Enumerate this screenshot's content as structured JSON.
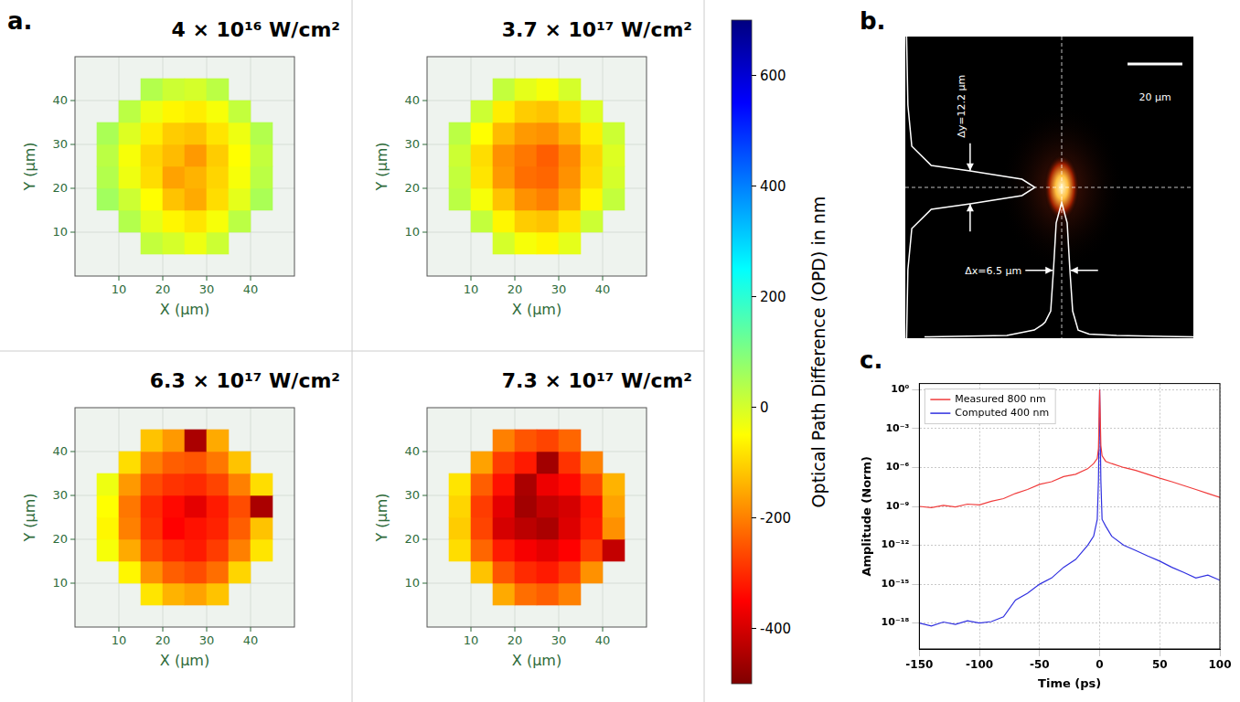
{
  "chart_data": [
    {
      "panel": "a.",
      "type": "heatmap",
      "x_label": "X (µm)",
      "y_label": "Y (µm)",
      "xlim": [
        0,
        50
      ],
      "ylim": [
        0,
        50
      ],
      "xticks": [
        10,
        20,
        30,
        40
      ],
      "yticks": [
        10,
        20,
        30,
        40
      ],
      "x": [
        7.5,
        12.5,
        17.5,
        22.5,
        27.5,
        32.5,
        37.5,
        42.5
      ],
      "y": [
        7.5,
        12.5,
        17.5,
        22.5,
        27.5,
        32.5,
        37.5,
        42.5
      ],
      "colorbar": {
        "label": "Optical Path Difference (OPD) in nm",
        "range": [
          -500,
          700
        ],
        "ticks": [
          -400,
          -200,
          0,
          200,
          400,
          600
        ]
      },
      "subplots": [
        {
          "title": "4 × 10¹⁶ W/cm²",
          "z": [
            [
              null,
              null,
              20,
              0,
              -30,
              10,
              null,
              null
            ],
            [
              null,
              40,
              -20,
              -60,
              -80,
              -40,
              30,
              null
            ],
            [
              60,
              10,
              -50,
              -120,
              -150,
              -90,
              -20,
              50
            ],
            [
              40,
              -30,
              -90,
              -160,
              -140,
              -100,
              -40,
              30
            ],
            [
              30,
              -40,
              -100,
              -130,
              -170,
              -110,
              -50,
              20
            ],
            [
              50,
              -10,
              -70,
              -110,
              -120,
              -80,
              -30,
              40
            ],
            [
              null,
              30,
              -30,
              -60,
              -70,
              -40,
              20,
              null
            ],
            [
              null,
              null,
              40,
              10,
              0,
              30,
              null,
              null
            ]
          ]
        },
        {
          "title": "3.7 × 10¹⁷ W/cm²",
          "z": [
            [
              null,
              null,
              0,
              -40,
              -60,
              -20,
              null,
              null
            ],
            [
              null,
              20,
              -60,
              -110,
              -120,
              -80,
              10,
              null
            ],
            [
              30,
              -40,
              -120,
              -180,
              -200,
              -150,
              -60,
              20
            ],
            [
              20,
              -80,
              -170,
              -220,
              -230,
              -180,
              -90,
              0
            ],
            [
              10,
              -90,
              -180,
              -210,
              -240,
              -190,
              -100,
              -10
            ],
            [
              30,
              -50,
              -130,
              -170,
              -180,
              -140,
              -70,
              10
            ],
            [
              null,
              10,
              -70,
              -110,
              -120,
              -90,
              -10,
              null
            ],
            [
              null,
              null,
              20,
              -20,
              -40,
              0,
              null,
              null
            ]
          ]
        },
        {
          "title": "6.3 × 10¹⁷ W/cm²",
          "z": [
            [
              null,
              null,
              -80,
              -140,
              -160,
              -120,
              null,
              null
            ],
            [
              null,
              -60,
              -180,
              -240,
              -260,
              -220,
              -100,
              null
            ],
            [
              -40,
              -150,
              -260,
              -300,
              -320,
              -280,
              -200,
              -80
            ],
            [
              -60,
              -200,
              -290,
              -350,
              -330,
              -310,
              -240,
              -120
            ],
            [
              -50,
              -210,
              -300,
              -340,
              -380,
              -320,
              -260,
              -450
            ],
            [
              -30,
              -170,
              -260,
              -290,
              -300,
              -270,
              -200,
              -90
            ],
            [
              null,
              -90,
              -200,
              -240,
              -250,
              -210,
              -120,
              null
            ],
            [
              null,
              null,
              -120,
              -170,
              -450,
              -150,
              null,
              null
            ]
          ]
        },
        {
          "title": "7.3 × 10¹⁷ W/cm²",
          "z": [
            [
              null,
              null,
              -150,
              -220,
              -240,
              -200,
              null,
              null
            ],
            [
              null,
              -120,
              -250,
              -300,
              -320,
              -280,
              -180,
              null
            ],
            [
              -90,
              -230,
              -320,
              -360,
              -380,
              -350,
              -280,
              -420
            ],
            [
              -110,
              -270,
              -400,
              -430,
              -450,
              -390,
              -320,
              -180
            ],
            [
              -100,
              -280,
              -380,
              -460,
              -420,
              -400,
              -330,
              -160
            ],
            [
              -80,
              -240,
              -330,
              -450,
              -370,
              -340,
              -270,
              -140
            ],
            [
              null,
              -160,
              -280,
              -320,
              -460,
              -290,
              -200,
              null
            ],
            [
              null,
              null,
              -200,
              -250,
              -270,
              -230,
              null,
              null
            ]
          ]
        }
      ]
    },
    {
      "panel": "b.",
      "type": "image",
      "xlim": [
        0,
        105
      ],
      "ylim": [
        0,
        110
      ],
      "scale_bar": {
        "length": 20,
        "label": "20 µm"
      },
      "spot": {
        "x": 57,
        "y": 55,
        "fwhm_x": 6.5,
        "fwhm_y": 12.2
      },
      "annotations": {
        "x": "Δx=6.5 µm",
        "y": "Δy=12.2 µm"
      },
      "x_profile": {
        "x": [
          -50,
          -20,
          -10,
          -7,
          -6,
          -4,
          -3,
          -2,
          0,
          2,
          3,
          4,
          6,
          10,
          20,
          48
        ],
        "values": [
          0.01,
          0.02,
          0.06,
          0.1,
          0.12,
          0.2,
          0.5,
          0.85,
          1,
          0.85,
          0.5,
          0.2,
          0.06,
          0.03,
          0.02,
          0.01
        ]
      },
      "y_profile": {
        "x": [
          -55,
          -30,
          -15,
          -8,
          -6,
          -3,
          0,
          3,
          6,
          8,
          15,
          30,
          55
        ],
        "values": [
          0.01,
          0.02,
          0.05,
          0.2,
          0.5,
          0.9,
          1,
          0.9,
          0.5,
          0.2,
          0.05,
          0.02,
          0.01
        ]
      }
    },
    {
      "panel": "c.",
      "type": "line",
      "x_label": "Time (ps)",
      "y_label": "Amplitude (Norm)",
      "log": "y",
      "grid": true,
      "legend": "upper left",
      "xlim": [
        -150,
        100
      ],
      "xticks": [
        -150,
        -100,
        -50,
        0,
        50,
        100
      ],
      "ylim": [
        1e-20,
        3
      ],
      "yticks": [
        {
          "value": 1e-18,
          "label": "10⁻¹⁸"
        },
        {
          "value": 1e-15,
          "label": "10⁻¹⁵"
        },
        {
          "value": 1e-12,
          "label": "10⁻¹²"
        },
        {
          "value": 1e-09,
          "label": "10⁻⁹"
        },
        {
          "value": 1e-06,
          "label": "10⁻⁶"
        },
        {
          "value": 0.001,
          "label": "10⁻³"
        },
        {
          "value": 1,
          "label": "10⁰"
        }
      ],
      "x": [
        -150,
        -140,
        -130,
        -120,
        -110,
        -100,
        -90,
        -80,
        -70,
        -60,
        -50,
        -40,
        -30,
        -20,
        -10,
        -5,
        -2,
        -1,
        0,
        1,
        2,
        5,
        10,
        20,
        30,
        40,
        50,
        60,
        70,
        80,
        90,
        100
      ],
      "series": [
        {
          "name": "Measured 800 nm",
          "color": "#f03c3c",
          "values": [
            1e-09,
            8e-10,
            1.2e-09,
            9e-10,
            1.5e-09,
            1.3e-09,
            2.5e-09,
            4e-09,
            1e-08,
            2e-08,
            5e-08,
            8e-08,
            2e-07,
            3e-07,
            8e-07,
            2e-06,
            5e-06,
            3e-05,
            1,
            5e-05,
            8e-06,
            3e-06,
            2e-06,
            1e-06,
            6e-07,
            3e-07,
            1.5e-07,
            8e-08,
            4e-08,
            2e-08,
            1e-08,
            5e-09
          ]
        },
        {
          "name": "Computed 400 nm",
          "color": "#3030e0",
          "values": [
            1e-18,
            6e-19,
            1.2e-18,
            8e-19,
            1.5e-18,
            1e-18,
            1.3e-18,
            3e-18,
            6e-17,
            2e-16,
            1e-15,
            3e-15,
            2e-14,
            8e-14,
            1e-12,
            5e-12,
            1e-10,
            1e-07,
            1,
            1e-07,
            1e-10,
            3e-11,
            5e-12,
            1e-12,
            4e-13,
            1.5e-13,
            6e-14,
            2e-14,
            8e-15,
            3e-15,
            5e-15,
            2e-15
          ]
        }
      ]
    }
  ]
}
